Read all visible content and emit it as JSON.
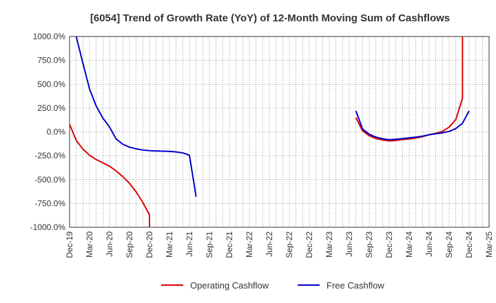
{
  "chart_data": {
    "type": "line",
    "title": "[6054]  Trend of Growth Rate (YoY) of 12-Month Moving Sum of Cashflows",
    "xlabel": "",
    "ylabel": "",
    "ylim": [
      -1000,
      1000
    ],
    "grid": true,
    "legend_position": "bottom",
    "y_ticks": [
      1000,
      750,
      500,
      250,
      0,
      -250,
      -500,
      -750,
      -1000
    ],
    "y_tick_labels": [
      "1000.0%",
      "750.0%",
      "500.0%",
      "250.0%",
      "0.0%",
      "-250.0%",
      "-500.0%",
      "-750.0%",
      "-1000.0%"
    ],
    "x_ticks": [
      "2019-12",
      "2020-03",
      "2020-06",
      "2020-09",
      "2020-12",
      "2021-03",
      "2021-06",
      "2021-09",
      "2021-12",
      "2022-03",
      "2022-06",
      "2022-09",
      "2022-12",
      "2023-03",
      "2023-06",
      "2023-09",
      "2023-12",
      "2024-03",
      "2024-06",
      "2024-09",
      "2024-12",
      "2025-03"
    ],
    "x_tick_labels": [
      "Dec-19",
      "Mar-20",
      "Jun-20",
      "Sep-20",
      "Dec-20",
      "Mar-21",
      "Jun-21",
      "Sep-21",
      "Dec-21",
      "Mar-22",
      "Jun-22",
      "Sep-22",
      "Dec-22",
      "Mar-23",
      "Jun-23",
      "Sep-23",
      "Dec-23",
      "Mar-24",
      "Jun-24",
      "Sep-24",
      "Dec-24",
      "Mar-25"
    ],
    "series": [
      {
        "name": "Operating Cashflow",
        "color": "#dd0000",
        "segments": [
          [
            {
              "x": "2019-12",
              "y": 80
            },
            {
              "x": "2020-01",
              "y": -90
            },
            {
              "x": "2020-02",
              "y": -180
            },
            {
              "x": "2020-03",
              "y": -245
            },
            {
              "x": "2020-04",
              "y": -290
            },
            {
              "x": "2020-05",
              "y": -325
            },
            {
              "x": "2020-06",
              "y": -360
            },
            {
              "x": "2020-07",
              "y": -410
            },
            {
              "x": "2020-08",
              "y": -470
            },
            {
              "x": "2020-09",
              "y": -540
            },
            {
              "x": "2020-10",
              "y": -630
            },
            {
              "x": "2020-11",
              "y": -740
            },
            {
              "x": "2020-12",
              "y": -870
            },
            {
              "x": "2020-12",
              "y": -1000
            }
          ],
          [
            {
              "x": "2023-07",
              "y": 150
            },
            {
              "x": "2023-08",
              "y": 10
            },
            {
              "x": "2023-09",
              "y": -40
            },
            {
              "x": "2023-10",
              "y": -70
            },
            {
              "x": "2023-11",
              "y": -85
            },
            {
              "x": "2023-12",
              "y": -95
            },
            {
              "x": "2024-01",
              "y": -90
            },
            {
              "x": "2024-02",
              "y": -80
            },
            {
              "x": "2024-03",
              "y": -75
            },
            {
              "x": "2024-04",
              "y": -65
            },
            {
              "x": "2024-05",
              "y": -50
            },
            {
              "x": "2024-06",
              "y": -30
            },
            {
              "x": "2024-07",
              "y": -15
            },
            {
              "x": "2024-08",
              "y": 5
            },
            {
              "x": "2024-09",
              "y": 50
            },
            {
              "x": "2024-10",
              "y": 130
            },
            {
              "x": "2024-11",
              "y": 350
            },
            {
              "x": "2024-11",
              "y": 1000
            }
          ]
        ]
      },
      {
        "name": "Free Cashflow",
        "color": "#0000cc",
        "segments": [
          [
            {
              "x": "2020-01",
              "y": 1000
            },
            {
              "x": "2020-02",
              "y": 720
            },
            {
              "x": "2020-03",
              "y": 450
            },
            {
              "x": "2020-04",
              "y": 270
            },
            {
              "x": "2020-05",
              "y": 145
            },
            {
              "x": "2020-06",
              "y": 50
            },
            {
              "x": "2020-07",
              "y": -75
            },
            {
              "x": "2020-08",
              "y": -130
            },
            {
              "x": "2020-09",
              "y": -160
            },
            {
              "x": "2020-10",
              "y": -178
            },
            {
              "x": "2020-11",
              "y": -190
            },
            {
              "x": "2020-12",
              "y": -197
            },
            {
              "x": "2021-01",
              "y": -200
            },
            {
              "x": "2021-02",
              "y": -202
            },
            {
              "x": "2021-03",
              "y": -205
            },
            {
              "x": "2021-04",
              "y": -210
            },
            {
              "x": "2021-05",
              "y": -220
            },
            {
              "x": "2021-06",
              "y": -245
            },
            {
              "x": "2021-07",
              "y": -680
            }
          ],
          [
            {
              "x": "2023-07",
              "y": 220
            },
            {
              "x": "2023-08",
              "y": 30
            },
            {
              "x": "2023-09",
              "y": -25
            },
            {
              "x": "2023-10",
              "y": -55
            },
            {
              "x": "2023-11",
              "y": -72
            },
            {
              "x": "2023-12",
              "y": -82
            },
            {
              "x": "2024-01",
              "y": -78
            },
            {
              "x": "2024-02",
              "y": -70
            },
            {
              "x": "2024-03",
              "y": -62
            },
            {
              "x": "2024-04",
              "y": -55
            },
            {
              "x": "2024-05",
              "y": -45
            },
            {
              "x": "2024-06",
              "y": -30
            },
            {
              "x": "2024-07",
              "y": -20
            },
            {
              "x": "2024-08",
              "y": -10
            },
            {
              "x": "2024-09",
              "y": 5
            },
            {
              "x": "2024-10",
              "y": 35
            },
            {
              "x": "2024-11",
              "y": 90
            },
            {
              "x": "2024-12",
              "y": 220
            }
          ]
        ]
      }
    ]
  }
}
